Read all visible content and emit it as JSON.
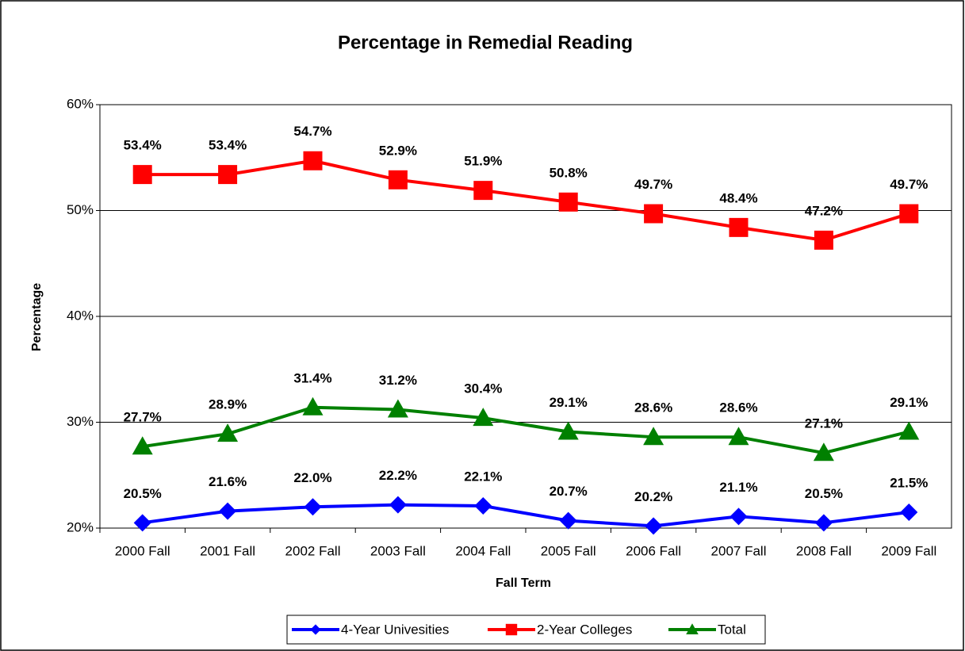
{
  "chart_data": {
    "type": "line",
    "title": "Percentage in Remedial Reading",
    "x_label": "Fall Term",
    "y_label": "Percentage",
    "categories": [
      "2000 Fall",
      "2001 Fall",
      "2002 Fall",
      "2003 Fall",
      "2004 Fall",
      "2005 Fall",
      "2006 Fall",
      "2007 Fall",
      "2008 Fall",
      "2009 Fall"
    ],
    "series": [
      {
        "name": "4-Year Univesities",
        "color": "#0000ff",
        "marker": "diamond",
        "values": [
          20.5,
          21.6,
          22.0,
          22.2,
          22.1,
          20.7,
          20.2,
          21.1,
          20.5,
          21.5
        ],
        "value_labels": [
          "20.5%",
          "21.6%",
          "22.0%",
          "22.2%",
          "22.1%",
          "20.7%",
          "20.2%",
          "21.1%",
          "20.5%",
          "21.5%"
        ]
      },
      {
        "name": "2-Year Colleges",
        "color": "#ff0000",
        "marker": "square",
        "values": [
          53.4,
          53.4,
          54.7,
          52.9,
          51.9,
          50.8,
          49.7,
          48.4,
          47.2,
          49.7
        ],
        "value_labels": [
          "53.4%",
          "53.4%",
          "54.7%",
          "52.9%",
          "51.9%",
          "50.8%",
          "49.7%",
          "48.4%",
          "47.2%",
          "49.7%"
        ]
      },
      {
        "name": "Total",
        "color": "#008000",
        "marker": "triangle",
        "values": [
          27.7,
          28.9,
          31.4,
          31.2,
          30.4,
          29.1,
          28.6,
          28.6,
          27.1,
          29.1
        ],
        "value_labels": [
          "27.7%",
          "28.9%",
          "31.4%",
          "31.2%",
          "30.4%",
          "29.1%",
          "28.6%",
          "28.6%",
          "27.1%",
          "29.1%"
        ]
      }
    ],
    "ylim": [
      20,
      60
    ],
    "yticks": [
      {
        "value": 20,
        "label": "20%"
      },
      {
        "value": 30,
        "label": "30%"
      },
      {
        "value": 40,
        "label": "40%"
      },
      {
        "value": 50,
        "label": "50%"
      },
      {
        "value": 60,
        "label": "60%"
      }
    ],
    "grid": true,
    "legend": "bottom"
  }
}
